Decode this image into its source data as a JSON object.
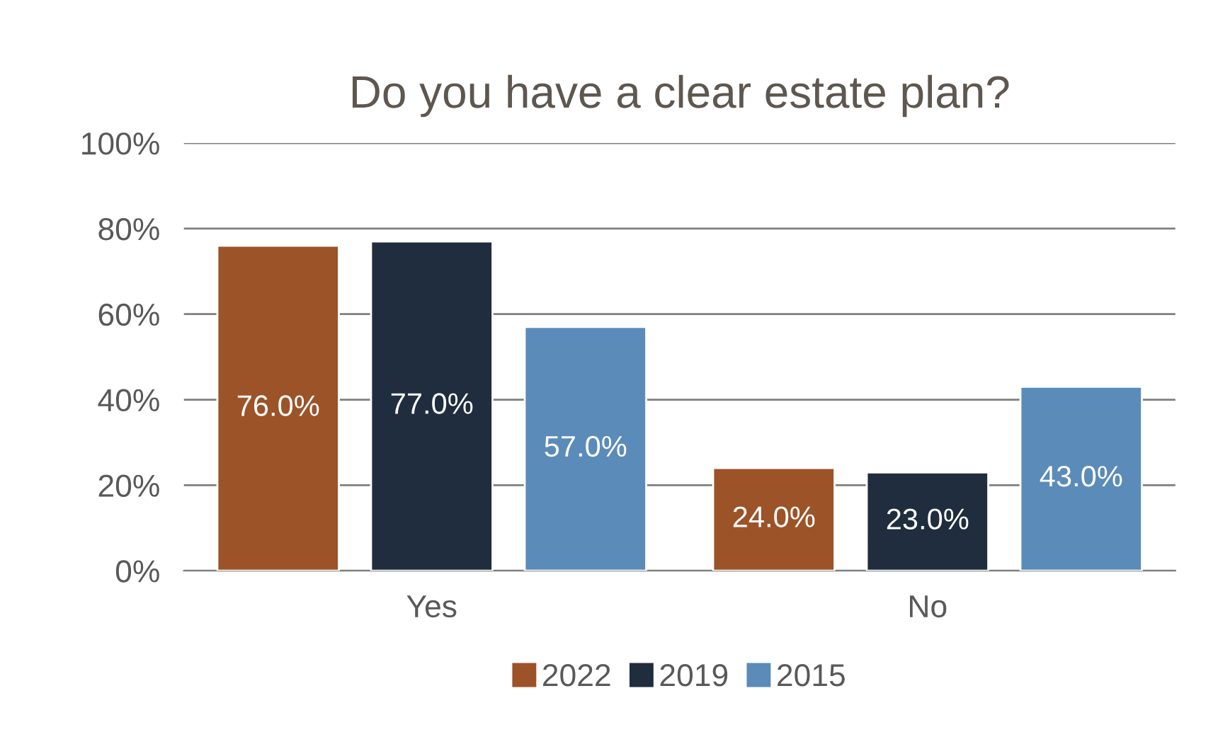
{
  "chart_data": {
    "type": "bar",
    "title": "Do you have a clear estate plan?",
    "categories": [
      "Yes",
      "No"
    ],
    "series": [
      {
        "name": "2022",
        "color": "#9c5328",
        "values": [
          76.0,
          24.0
        ],
        "value_labels": [
          "76.0%",
          "24.0%"
        ]
      },
      {
        "name": "2019",
        "color": "#1f2d3e",
        "values": [
          77.0,
          23.0
        ],
        "value_labels": [
          "77.0%",
          "23.0%"
        ]
      },
      {
        "name": "2015",
        "color": "#5b8bb9",
        "values": [
          57.0,
          43.0
        ],
        "value_labels": [
          "57.0%",
          "43.0%"
        ]
      }
    ],
    "ylim": [
      0,
      100
    ],
    "yticks": [
      {
        "value": 0,
        "label": "0%"
      },
      {
        "value": 20,
        "label": "20%"
      },
      {
        "value": 40,
        "label": "40%"
      },
      {
        "value": 60,
        "label": "60%"
      },
      {
        "value": 80,
        "label": "80%"
      },
      {
        "value": 100,
        "label": "100%"
      }
    ],
    "grid": "y",
    "legend": "bottom"
  }
}
